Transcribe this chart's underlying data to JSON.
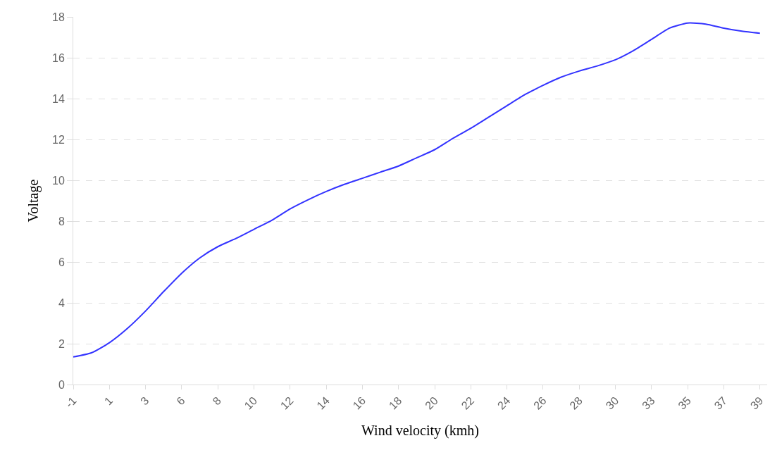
{
  "chart_data": {
    "type": "line",
    "xlabel": "Wind velocity (kmh)",
    "ylabel": "Voltage",
    "categories": [
      "-1",
      null,
      "1",
      null,
      "3",
      null,
      "6",
      null,
      "8",
      null,
      "10",
      null,
      "12",
      null,
      "14",
      null,
      "16",
      null,
      "18",
      null,
      "20",
      null,
      "22",
      null,
      "24",
      null,
      "26",
      null,
      "28",
      null,
      "30",
      null,
      "33",
      null,
      "35",
      null,
      "37",
      null,
      "39"
    ],
    "series": [
      {
        "color": "#3333ff",
        "values": [
          1.35,
          1.55,
          2.05,
          2.75,
          3.6,
          4.55,
          5.45,
          6.2,
          6.75,
          7.15,
          7.6,
          8.05,
          8.6,
          9.05,
          9.45,
          9.8,
          10.1,
          10.4,
          10.7,
          11.1,
          11.5,
          12.05,
          12.55,
          13.1,
          13.65,
          14.2,
          14.65,
          15.05,
          15.35,
          15.6,
          15.9,
          16.35,
          16.9,
          17.45,
          17.7,
          17.65,
          17.45,
          17.3,
          17.2
        ]
      }
    ],
    "ylim": [
      0,
      18
    ],
    "yticks": [
      0,
      2,
      4,
      6,
      8,
      10,
      12,
      14,
      16,
      18
    ],
    "grid": "y",
    "marker": "none",
    "line_style": "solid"
  }
}
